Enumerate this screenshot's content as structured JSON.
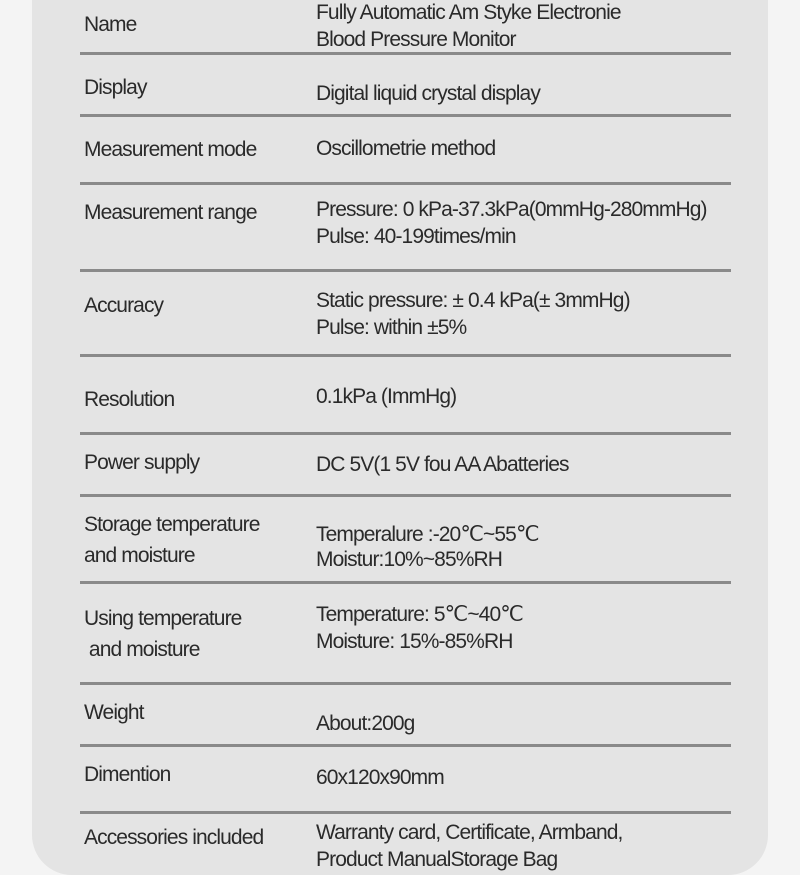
{
  "specs": [
    {
      "label": [
        "Name"
      ],
      "value": [
        "Fully Automatic Am Styke Electronie",
        "Blood Pressure Monitor"
      ]
    },
    {
      "label": [
        "Display"
      ],
      "value": [
        "Digital liquid crystal display"
      ]
    },
    {
      "label": [
        "Measurement mode"
      ],
      "value": [
        "Oscillometrie method"
      ]
    },
    {
      "label": [
        "Measurement range"
      ],
      "value": [
        "Pressure: 0 kPa-37.3kPa(0mmHg-280mmHg)",
        "Pulse: 40-199times/min"
      ]
    },
    {
      "label": [
        "Accuracy"
      ],
      "value": [
        "Static pressure: ± 0.4 kPa(± 3mmHg)",
        "Pulse: within ±5%"
      ]
    },
    {
      "label": [
        "Resolution"
      ],
      "value": [
        "0.1kPa (ImmHg)"
      ]
    },
    {
      "label": [
        "Power supply"
      ],
      "value": [
        "DC 5V(1 5V fou AA Abatteries"
      ]
    },
    {
      "label": [
        "Storage temperature",
        "and moisture"
      ],
      "value": [
        "Temperalure :-20℃~55℃",
        "Moistur:10%~85%RH"
      ]
    },
    {
      "label": [
        "Using temperature",
        " and moisture"
      ],
      "value": [
        "Temperature: 5℃~40℃",
        "Moisture: 15%-85%RH"
      ]
    },
    {
      "label": [
        "Weight"
      ],
      "value": [
        "About:200g"
      ]
    },
    {
      "label": [
        "Dimention"
      ],
      "value": [
        "60x120x90mm"
      ]
    },
    {
      "label": [
        "Accessories included"
      ],
      "value": [
        "Warranty card, Certificate, Armband,",
        "Product ManualStorage Bag"
      ]
    }
  ]
}
